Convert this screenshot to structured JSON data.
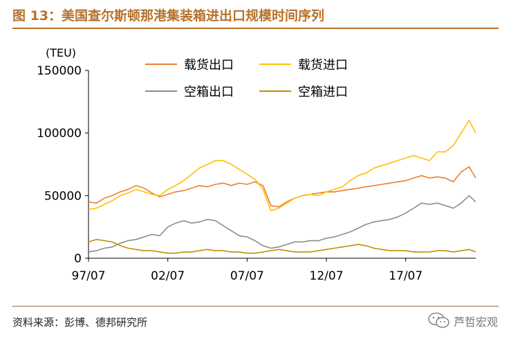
{
  "header": {
    "title": "图 13：美国查尔斯顿那港集装箱进出口规模时间序列"
  },
  "footer": {
    "source": "资料来源：彭博、德邦研究所",
    "watermark": "芦哲宏观"
  },
  "colors": {
    "title": "#b6712a",
    "loaded_export": "#ed7d31",
    "loaded_import": "#ffc000",
    "empty_export": "#8c8c8c",
    "empty_import": "#c09100"
  },
  "icons": [
    "wechat-icon"
  ],
  "chart_data": {
    "type": "line",
    "unit_label": "(TEU)",
    "ylim": [
      0,
      150000
    ],
    "y_ticks": [
      "150000",
      "100000",
      "50000",
      "0"
    ],
    "x_tick_labels": [
      "97/07",
      "02/07",
      "07/07",
      "12/07",
      "17/07"
    ],
    "x_ticks": [
      "1997-07",
      "2002-07",
      "2007-07",
      "2012-07",
      "2017-07"
    ],
    "x_range": [
      "1997-07",
      "2021-12"
    ],
    "legend_position": "top",
    "x": [
      "1997-07",
      "1998-01",
      "1998-07",
      "1999-01",
      "1999-07",
      "2000-01",
      "2000-07",
      "2001-01",
      "2001-07",
      "2002-01",
      "2002-07",
      "2003-01",
      "2003-07",
      "2004-01",
      "2004-07",
      "2005-01",
      "2005-07",
      "2006-01",
      "2006-07",
      "2007-01",
      "2007-07",
      "2008-01",
      "2008-07",
      "2009-01",
      "2009-07",
      "2010-01",
      "2010-07",
      "2011-01",
      "2011-07",
      "2012-01",
      "2012-07",
      "2013-01",
      "2013-07",
      "2014-01",
      "2014-07",
      "2015-01",
      "2015-07",
      "2016-01",
      "2016-07",
      "2017-01",
      "2017-07",
      "2018-01",
      "2018-07",
      "2019-01",
      "2019-07",
      "2020-01",
      "2020-07",
      "2021-01",
      "2021-07",
      "2021-12"
    ],
    "series": [
      {
        "name": "载货出口",
        "color": "#ed7d31",
        "values": [
          45000,
          44000,
          48000,
          50000,
          53000,
          55000,
          58000,
          56000,
          52000,
          49000,
          51000,
          53000,
          54000,
          56000,
          58000,
          57000,
          59000,
          60000,
          58000,
          60000,
          59000,
          61000,
          58000,
          42000,
          41000,
          45000,
          48000,
          50000,
          51000,
          52000,
          53000,
          53000,
          54000,
          55000,
          56000,
          57000,
          58000,
          59000,
          60000,
          61000,
          62000,
          64000,
          66000,
          64000,
          65000,
          64000,
          61000,
          69000,
          73000,
          64000
        ]
      },
      {
        "name": "载货进口",
        "color": "#ffc000",
        "values": [
          39000,
          40000,
          43000,
          46000,
          50000,
          52000,
          55000,
          53000,
          51000,
          50000,
          55000,
          58000,
          62000,
          67000,
          72000,
          75000,
          78000,
          78000,
          75000,
          71000,
          67000,
          63000,
          55000,
          38000,
          40000,
          44000,
          48000,
          50000,
          51000,
          50000,
          53000,
          55000,
          57000,
          62000,
          66000,
          68000,
          72000,
          74000,
          76000,
          78000,
          80000,
          82000,
          80000,
          78000,
          85000,
          85000,
          90000,
          100000,
          110000,
          100000
        ]
      },
      {
        "name": "空箱出口",
        "color": "#8c8c8c",
        "values": [
          5000,
          6000,
          8000,
          9000,
          12000,
          14000,
          15000,
          17000,
          19000,
          18000,
          25000,
          28000,
          30000,
          28000,
          29000,
          31000,
          30000,
          26000,
          22000,
          18000,
          17000,
          14000,
          10000,
          8000,
          9000,
          11000,
          13000,
          13000,
          14000,
          14000,
          16000,
          17000,
          19000,
          21000,
          24000,
          27000,
          29000,
          30000,
          31000,
          33000,
          36000,
          40000,
          44000,
          43000,
          44000,
          42000,
          40000,
          44000,
          50000,
          45000
        ]
      },
      {
        "name": "空箱进口",
        "color": "#c09100",
        "values": [
          13000,
          15000,
          14000,
          13000,
          10000,
          8000,
          7000,
          6000,
          6000,
          5000,
          4000,
          4000,
          5000,
          5000,
          6000,
          7000,
          6000,
          6000,
          5000,
          5000,
          4000,
          4000,
          5000,
          6000,
          7000,
          6000,
          5000,
          5000,
          5000,
          6000,
          7000,
          8000,
          9000,
          10000,
          11000,
          10000,
          8000,
          7000,
          6000,
          6000,
          6000,
          5000,
          5000,
          5000,
          6000,
          6000,
          5000,
          6000,
          7000,
          5000
        ]
      }
    ]
  }
}
